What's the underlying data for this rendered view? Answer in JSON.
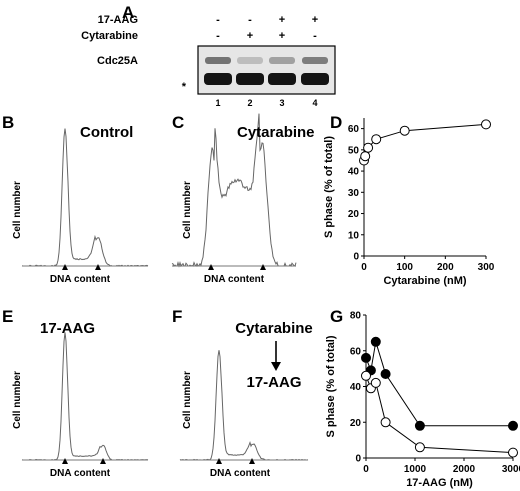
{
  "panel_labels": [
    "A",
    "B",
    "C",
    "D",
    "E",
    "F",
    "G"
  ],
  "blot": {
    "rows": [
      {
        "label": "17-AAG",
        "marks": [
          "-",
          "-",
          "+",
          "+"
        ]
      },
      {
        "label": "Cytarabine",
        "marks": [
          "-",
          "+",
          "+",
          "-"
        ]
      }
    ],
    "band_label": "Cdc25A",
    "loading_marker": "*",
    "lanes": [
      "1",
      "2",
      "3",
      "4"
    ],
    "cdc25a_intensity": [
      0.55,
      0.18,
      0.32,
      0.5
    ]
  },
  "histograms": {
    "B": {
      "title": "Control",
      "ylabel": "Cell number",
      "xlabel": "DNA content"
    },
    "C": {
      "title": "Cytarabine",
      "ylabel": "Cell number",
      "xlabel": "DNA content"
    },
    "E": {
      "title": "17-AAG",
      "ylabel": "Cell number",
      "xlabel": "DNA content"
    },
    "F": {
      "title_top": "Cytarabine",
      "title_bottom": "17-AAG",
      "ylabel": "Cell number",
      "xlabel": "DNA content"
    }
  },
  "chart_data": [
    {
      "panel": "D",
      "type": "line",
      "xlabel": "Cytarabine (nM)",
      "ylabel": "S phase (% of total)",
      "xlim": [
        0,
        300
      ],
      "ylim": [
        0,
        65
      ],
      "xticks": [
        0,
        100,
        200,
        300
      ],
      "yticks": [
        0,
        10,
        20,
        30,
        40,
        50,
        60
      ],
      "grid": false,
      "series": [
        {
          "marker": "open-circle",
          "x": [
            0,
            3,
            10,
            30,
            100,
            300
          ],
          "y": [
            45,
            47,
            51,
            55,
            59,
            62
          ]
        }
      ]
    },
    {
      "panel": "G",
      "type": "line",
      "xlabel": "17-AAG (nM)",
      "ylabel": "S phase (% of total)",
      "xlim": [
        0,
        3000
      ],
      "ylim": [
        0,
        80
      ],
      "xticks": [
        0,
        1000,
        2000,
        3000
      ],
      "yticks": [
        0,
        20,
        40,
        60,
        80
      ],
      "grid": false,
      "series": [
        {
          "marker": "filled-circle",
          "x": [
            0,
            100,
            200,
            400,
            1100,
            3000
          ],
          "y": [
            56,
            49,
            65,
            47,
            18,
            18
          ]
        },
        {
          "marker": "open-circle",
          "x": [
            0,
            100,
            200,
            400,
            1100,
            3000
          ],
          "y": [
            46,
            39,
            42,
            20,
            6,
            3
          ]
        }
      ]
    }
  ]
}
